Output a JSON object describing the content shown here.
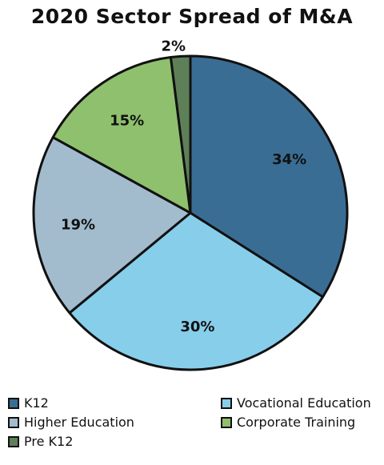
{
  "chart_data": {
    "type": "pie",
    "title": "2020 Sector Spread of M&A",
    "categories": [
      "K12",
      "Vocational Education",
      "Higher Education",
      "Corporate Training",
      "Pre K12"
    ],
    "values": [
      34,
      30,
      19,
      15,
      2
    ],
    "value_labels": [
      "34%",
      "30%",
      "19%",
      "15%",
      "2%"
    ],
    "colors": [
      "#3a6d94",
      "#87ceeb",
      "#a2bccd",
      "#8fc06d",
      "#5e8058"
    ],
    "legend": {
      "placement": "bottom",
      "entries": [
        {
          "label": "K12",
          "color": "#3a6d94"
        },
        {
          "label": "Vocational Education",
          "color": "#87ceeb"
        },
        {
          "label": "Higher Education",
          "color": "#a2bccd"
        },
        {
          "label": "Corporate Training",
          "color": "#8fc06d"
        },
        {
          "label": "Pre K12",
          "color": "#5e8058"
        }
      ]
    }
  }
}
